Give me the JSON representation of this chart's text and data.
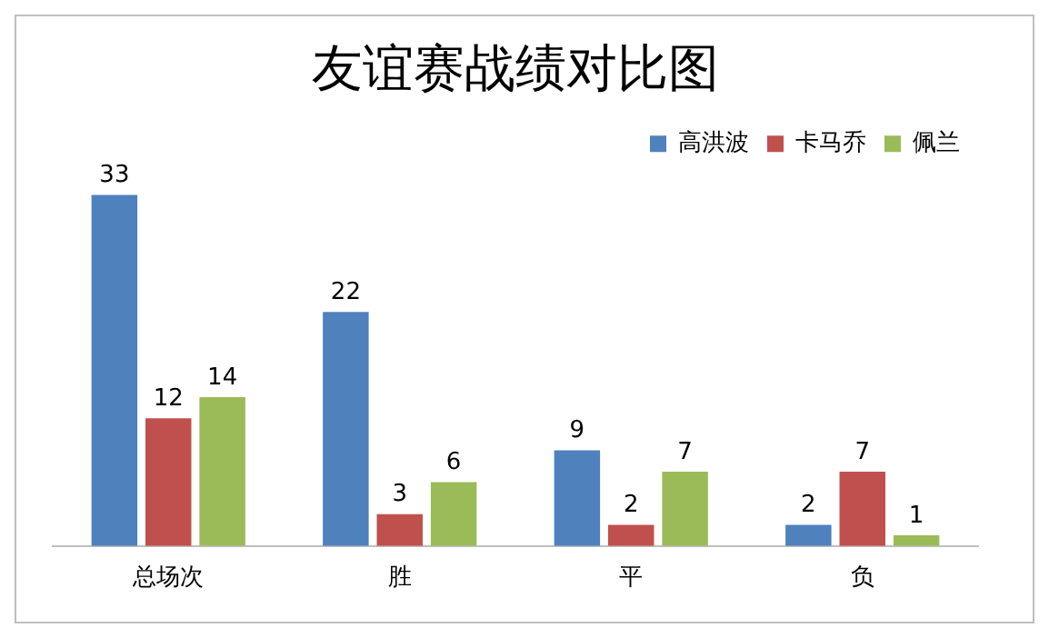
{
  "chart_data": {
    "type": "bar",
    "title": "友谊赛战绩对比图",
    "categories": [
      "总场次",
      "胜",
      "平",
      "负"
    ],
    "series": [
      {
        "name": "高洪波",
        "color": "#4f81bd",
        "values": [
          33,
          22,
          9,
          2
        ]
      },
      {
        "name": "卡马乔",
        "color": "#c0504d",
        "values": [
          12,
          3,
          2,
          7
        ]
      },
      {
        "name": "佩兰",
        "color": "#9bbb59",
        "values": [
          14,
          6,
          7,
          1
        ]
      }
    ],
    "data_labels": true,
    "legend": "top right",
    "grid": false,
    "tick_labels": "x"
  }
}
